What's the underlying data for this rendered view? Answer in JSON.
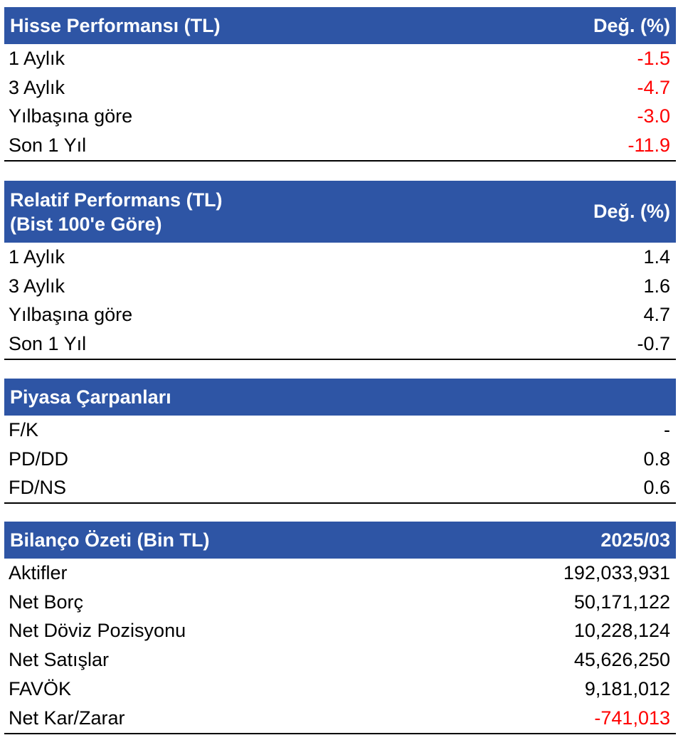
{
  "hisse_performansi": {
    "title": "Hisse Performansı (TL)",
    "col_header": "Değ. (%)",
    "rows": [
      {
        "label": "1 Aylık",
        "value": "-1.5"
      },
      {
        "label": "3 Aylık",
        "value": "-4.7"
      },
      {
        "label": "Yılbaşına göre",
        "value": "-3.0"
      },
      {
        "label": "Son 1 Yıl",
        "value": "-11.9"
      }
    ]
  },
  "relatif_performans": {
    "title_line1": "Relatif Performans (TL)",
    "title_line2": "(Bist 100'e Göre)",
    "col_header": "Değ. (%)",
    "rows": [
      {
        "label": "1 Aylık",
        "value": "1.4"
      },
      {
        "label": "3 Aylık",
        "value": "1.6"
      },
      {
        "label": "Yılbaşına göre",
        "value": "4.7"
      },
      {
        "label": "Son 1 Yıl",
        "value": "-0.7"
      }
    ]
  },
  "piyasa_carpanlari": {
    "title": "Piyasa Çarpanları",
    "rows": [
      {
        "label": "F/K",
        "value": "-"
      },
      {
        "label": "PD/DD",
        "value": "0.8"
      },
      {
        "label": "FD/NS",
        "value": "0.6"
      }
    ]
  },
  "bilanco_ozeti": {
    "title": "Bilanço Özeti (Bin TL)",
    "col_header": "2025/03",
    "rows": [
      {
        "label": "Aktifler",
        "value": "192,033,931"
      },
      {
        "label": "Net Borç",
        "value": "50,171,122"
      },
      {
        "label": "Net Döviz Pozisyonu",
        "value": "10,228,124"
      },
      {
        "label": "Net Satışlar",
        "value": "45,626,250"
      },
      {
        "label": "FAVÖK",
        "value": "9,181,012"
      },
      {
        "label": "Net Kar/Zarar",
        "value": "-741,013"
      }
    ]
  },
  "colors": {
    "header_bg": "#2e55a5",
    "header_text": "#ffffff",
    "negative_value": "#ff0000",
    "rule": "#000000"
  }
}
